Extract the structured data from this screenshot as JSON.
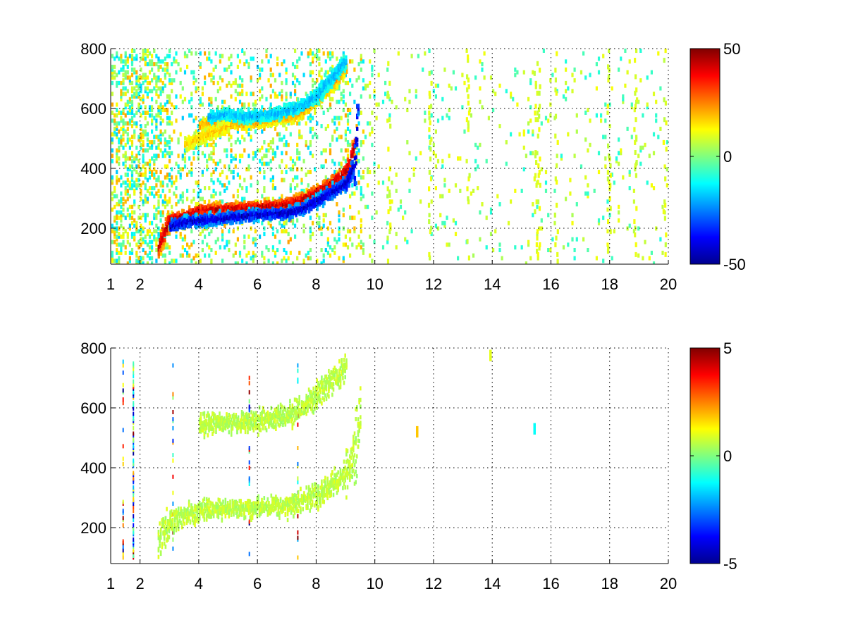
{
  "chart_data": [
    {
      "type": "heatmap",
      "xlim": [
        1,
        20
      ],
      "ylim": [
        80,
        800
      ],
      "x_ticks": [
        1,
        2,
        4,
        6,
        8,
        10,
        12,
        14,
        16,
        18,
        20
      ],
      "x_tick_labels": [
        "1",
        "2",
        "4",
        "6",
        "8",
        "10",
        "12",
        "14",
        "16",
        "18",
        "20"
      ],
      "y_ticks": [
        200,
        400,
        600,
        800
      ],
      "y_tick_labels": [
        "200",
        "400",
        "600",
        "800"
      ],
      "grid": "on",
      "colormap": "jet",
      "clim": [
        -50,
        50
      ],
      "colorbar_ticks": [
        -50,
        0,
        50
      ],
      "colorbar_tick_labels": [
        "-50",
        "0",
        "50"
      ],
      "features": [
        {
          "x": [
            2.6,
            3.0,
            3.5,
            4.0,
            5.0,
            6.0,
            7.0,
            7.5,
            8.0,
            8.5,
            9.0,
            9.3
          ],
          "y": [
            140,
            230,
            240,
            260,
            265,
            270,
            280,
            295,
            320,
            350,
            390,
            480
          ],
          "value": 45
        },
        {
          "x": [
            3.0,
            3.5,
            4.0,
            5.0,
            6.0,
            7.0,
            7.5,
            8.0,
            8.5,
            9.0,
            9.3,
            9.4
          ],
          "y": [
            205,
            220,
            225,
            235,
            245,
            250,
            265,
            290,
            320,
            350,
            420,
            600
          ],
          "value": -45
        },
        {
          "x": [
            4.0,
            4.4,
            5.0,
            5.5,
            6.0,
            7.0,
            7.5,
            8.0,
            8.5,
            9.0
          ],
          "y": [
            540,
            555,
            550,
            550,
            555,
            570,
            590,
            630,
            680,
            730
          ],
          "value": 22
        },
        {
          "x": [
            4.3,
            5.0,
            5.5,
            6.0,
            6.5,
            7.0,
            7.5,
            8.0,
            8.3,
            8.7,
            9.0
          ],
          "y": [
            570,
            580,
            570,
            575,
            580,
            590,
            610,
            640,
            680,
            720,
            760
          ],
          "value": -20
        },
        {
          "x": [
            3.5,
            4.0,
            4.5,
            5.0
          ],
          "y": [
            480,
            500,
            520,
            540
          ],
          "value": 18
        }
      ]
    },
    {
      "type": "heatmap",
      "xlim": [
        1,
        20
      ],
      "ylim": [
        80,
        800
      ],
      "x_ticks": [
        1,
        2,
        4,
        6,
        8,
        10,
        12,
        14,
        16,
        18,
        20
      ],
      "x_tick_labels": [
        "1",
        "2",
        "4",
        "6",
        "8",
        "10",
        "12",
        "14",
        "16",
        "18",
        "20"
      ],
      "y_ticks": [
        200,
        400,
        600,
        800
      ],
      "y_tick_labels": [
        "200",
        "400",
        "600",
        "800"
      ],
      "grid": "on",
      "colormap": "jet",
      "clim": [
        -5,
        5
      ],
      "colorbar_ticks": [
        -5,
        0,
        5
      ],
      "colorbar_tick_labels": [
        "-5",
        "0",
        "5"
      ],
      "features": [
        {
          "x": [
            2.6,
            3.0,
            3.5,
            4.0,
            5.0,
            6.0,
            7.0,
            7.5,
            8.0,
            8.5,
            9.0,
            9.3,
            9.5
          ],
          "y": [
            140,
            225,
            240,
            255,
            265,
            265,
            275,
            290,
            310,
            340,
            380,
            450,
            600
          ],
          "value": 0.6
        },
        {
          "x": [
            4.0,
            4.5,
            5.0,
            5.5,
            6.0,
            7.0,
            7.5,
            8.0,
            8.5,
            9.0
          ],
          "y": [
            540,
            555,
            550,
            550,
            555,
            575,
            600,
            640,
            690,
            740
          ],
          "value": 0.6
        }
      ],
      "spots": [
        {
          "x": 11.4,
          "y": 520,
          "value": 1.8
        },
        {
          "x": 13.9,
          "y": 775,
          "value": 1.0
        },
        {
          "x": 15.4,
          "y": 530,
          "value": -1.2
        }
      ]
    }
  ]
}
